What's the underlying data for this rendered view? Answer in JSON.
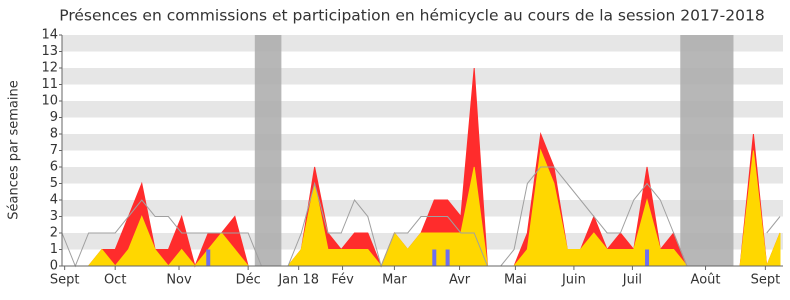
{
  "chart_data": {
    "type": "area",
    "title": "Présences en commissions et participation en hémicycle au cours de la session 2017-2018",
    "y_label": "Séances par semaine",
    "x": [
      0,
      1,
      2,
      3,
      4,
      5,
      6,
      7,
      8,
      9,
      10,
      11,
      12,
      13,
      14,
      15,
      16,
      17,
      18,
      19,
      20,
      21,
      22,
      23,
      24,
      25,
      26,
      27,
      28,
      29,
      30,
      31,
      32,
      33,
      34,
      35,
      36,
      37,
      38,
      39,
      40,
      41,
      42,
      43,
      44,
      45,
      46,
      47,
      48,
      49,
      50,
      51,
      52,
      53,
      54
    ],
    "xlim": [
      0,
      54
    ],
    "xticks": [
      {
        "value": 0.2,
        "label": "Sept"
      },
      {
        "value": 4,
        "label": "Oct"
      },
      {
        "value": 8.8,
        "label": "Nov"
      },
      {
        "value": 14,
        "label": "Déc"
      },
      {
        "value": 17.8,
        "label": "Jan 18"
      },
      {
        "value": 21.1,
        "label": "Fév"
      },
      {
        "value": 25,
        "label": "Mar"
      },
      {
        "value": 29.9,
        "label": "Avr"
      },
      {
        "value": 34.1,
        "label": "Mai"
      },
      {
        "value": 38.5,
        "label": "Juin"
      },
      {
        "value": 42.9,
        "label": "Juil"
      },
      {
        "value": 48.4,
        "label": "Août"
      },
      {
        "value": 52.9,
        "label": "Sept"
      }
    ],
    "ylim": [
      0,
      14
    ],
    "yticks": [
      0,
      1,
      2,
      3,
      4,
      5,
      6,
      7,
      8,
      9,
      10,
      11,
      12,
      13,
      14
    ],
    "vacations": [
      [
        14.5,
        16.5
      ],
      [
        46.5,
        50.5
      ]
    ],
    "vacation_color": "#aaaaaa",
    "grid": true,
    "series": [
      {
        "color": "#ff2c2c",
        "kind": "area",
        "values": [
          0,
          0,
          0,
          1,
          1,
          3,
          5,
          1,
          1,
          3,
          0,
          2,
          2,
          3,
          0,
          0,
          0,
          0,
          1,
          6,
          2,
          1,
          2,
          2,
          0,
          2,
          1,
          2,
          4,
          4,
          3,
          12,
          0,
          0,
          0,
          2,
          8,
          6,
          1,
          1,
          3,
          1,
          2,
          1,
          6,
          1,
          2,
          0,
          0,
          0,
          0,
          0,
          8,
          0,
          2
        ]
      },
      {
        "color": "#ffd700",
        "kind": "area",
        "values": [
          0,
          0,
          0,
          1,
          0,
          1,
          3,
          1,
          0,
          1,
          0,
          1,
          2,
          1,
          0,
          0,
          0,
          0,
          1,
          5,
          1,
          1,
          1,
          1,
          0,
          2,
          1,
          2,
          2,
          2,
          2,
          6,
          0,
          0,
          0,
          1,
          7,
          5,
          1,
          1,
          2,
          1,
          1,
          1,
          4,
          1,
          1,
          0,
          0,
          0,
          0,
          0,
          7,
          0,
          2
        ]
      },
      {
        "color": "#a0a0a0",
        "kind": "line",
        "values": [
          2,
          0,
          2,
          2,
          2,
          3,
          4,
          3,
          3,
          2,
          2,
          2,
          2,
          2,
          2,
          0,
          null,
          0,
          2,
          5,
          2,
          2,
          4,
          3,
          0,
          2,
          2,
          3,
          3,
          3,
          2,
          2,
          0,
          0,
          1,
          5,
          6,
          6,
          5,
          4,
          3,
          2,
          2,
          4,
          5,
          4,
          2,
          0,
          null,
          null,
          null,
          null,
          null,
          2,
          3
        ]
      },
      {
        "color": "#6e6ef0",
        "kind": "bar",
        "values": [
          0,
          0,
          0,
          0,
          0,
          0,
          0,
          0,
          0,
          0,
          0,
          1,
          0,
          0,
          0,
          0,
          0,
          0,
          0,
          0,
          0,
          0,
          0,
          0,
          0,
          0,
          0,
          0,
          1,
          1,
          0,
          0,
          0,
          0,
          0,
          0,
          0,
          0,
          0,
          0,
          0,
          0,
          0,
          0,
          1,
          0,
          0,
          0,
          0,
          0,
          0,
          0,
          0,
          0,
          0
        ]
      }
    ]
  }
}
